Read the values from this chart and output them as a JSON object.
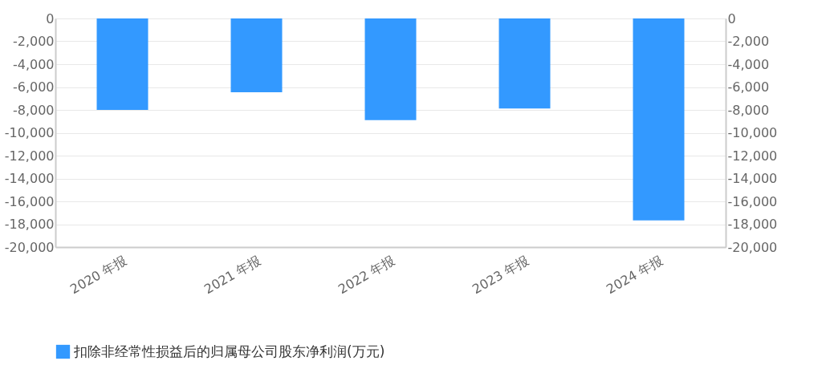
{
  "chart_data": {
    "type": "bar",
    "categories": [
      "2020 年报",
      "2021 年报",
      "2022 年报",
      "2023 年报",
      "2024 年报"
    ],
    "series": [
      {
        "name": "扣除非经常性损益后的归属母公司股东净利润(万元)",
        "color": "#3399ff",
        "values": [
          -8000,
          -6450,
          -8890,
          -7870,
          -17660
        ]
      }
    ],
    "ylim": [
      -20000,
      0
    ],
    "yticks": [
      0,
      {
        "value": -2000,
        "label": "-2,000"
      },
      {
        "value": -4000,
        "label": "-4,000"
      },
      {
        "value": -6000,
        "label": "-6,000"
      },
      {
        "value": -8000,
        "label": "-8,000"
      },
      {
        "value": -10000,
        "label": "-10,000"
      },
      {
        "value": -12000,
        "label": "-12,000"
      },
      {
        "value": -14000,
        "label": "-14,000"
      },
      {
        "value": -16000,
        "label": "-16,000"
      },
      {
        "value": -18000,
        "label": "-18,000"
      },
      {
        "value": -20000,
        "label": "-20,000"
      }
    ],
    "y2lim": [
      -20000,
      0
    ],
    "y2ticks": [
      0,
      {
        "value": -2000,
        "label": "-2,000"
      },
      {
        "value": -4000,
        "label": "-4,000"
      },
      {
        "value": -6000,
        "label": "-6,000"
      },
      {
        "value": -8000,
        "label": "-8,000"
      },
      {
        "value": -10000,
        "label": "-10,000"
      },
      {
        "value": -12000,
        "label": "-12,000"
      },
      {
        "value": -14000,
        "label": "-14,000"
      },
      {
        "value": -16000,
        "label": "-16,000"
      },
      {
        "value": -18000,
        "label": "-18,000"
      },
      {
        "value": -20000,
        "label": "-20,000"
      }
    ],
    "grid": "y",
    "legend": "bottom"
  }
}
